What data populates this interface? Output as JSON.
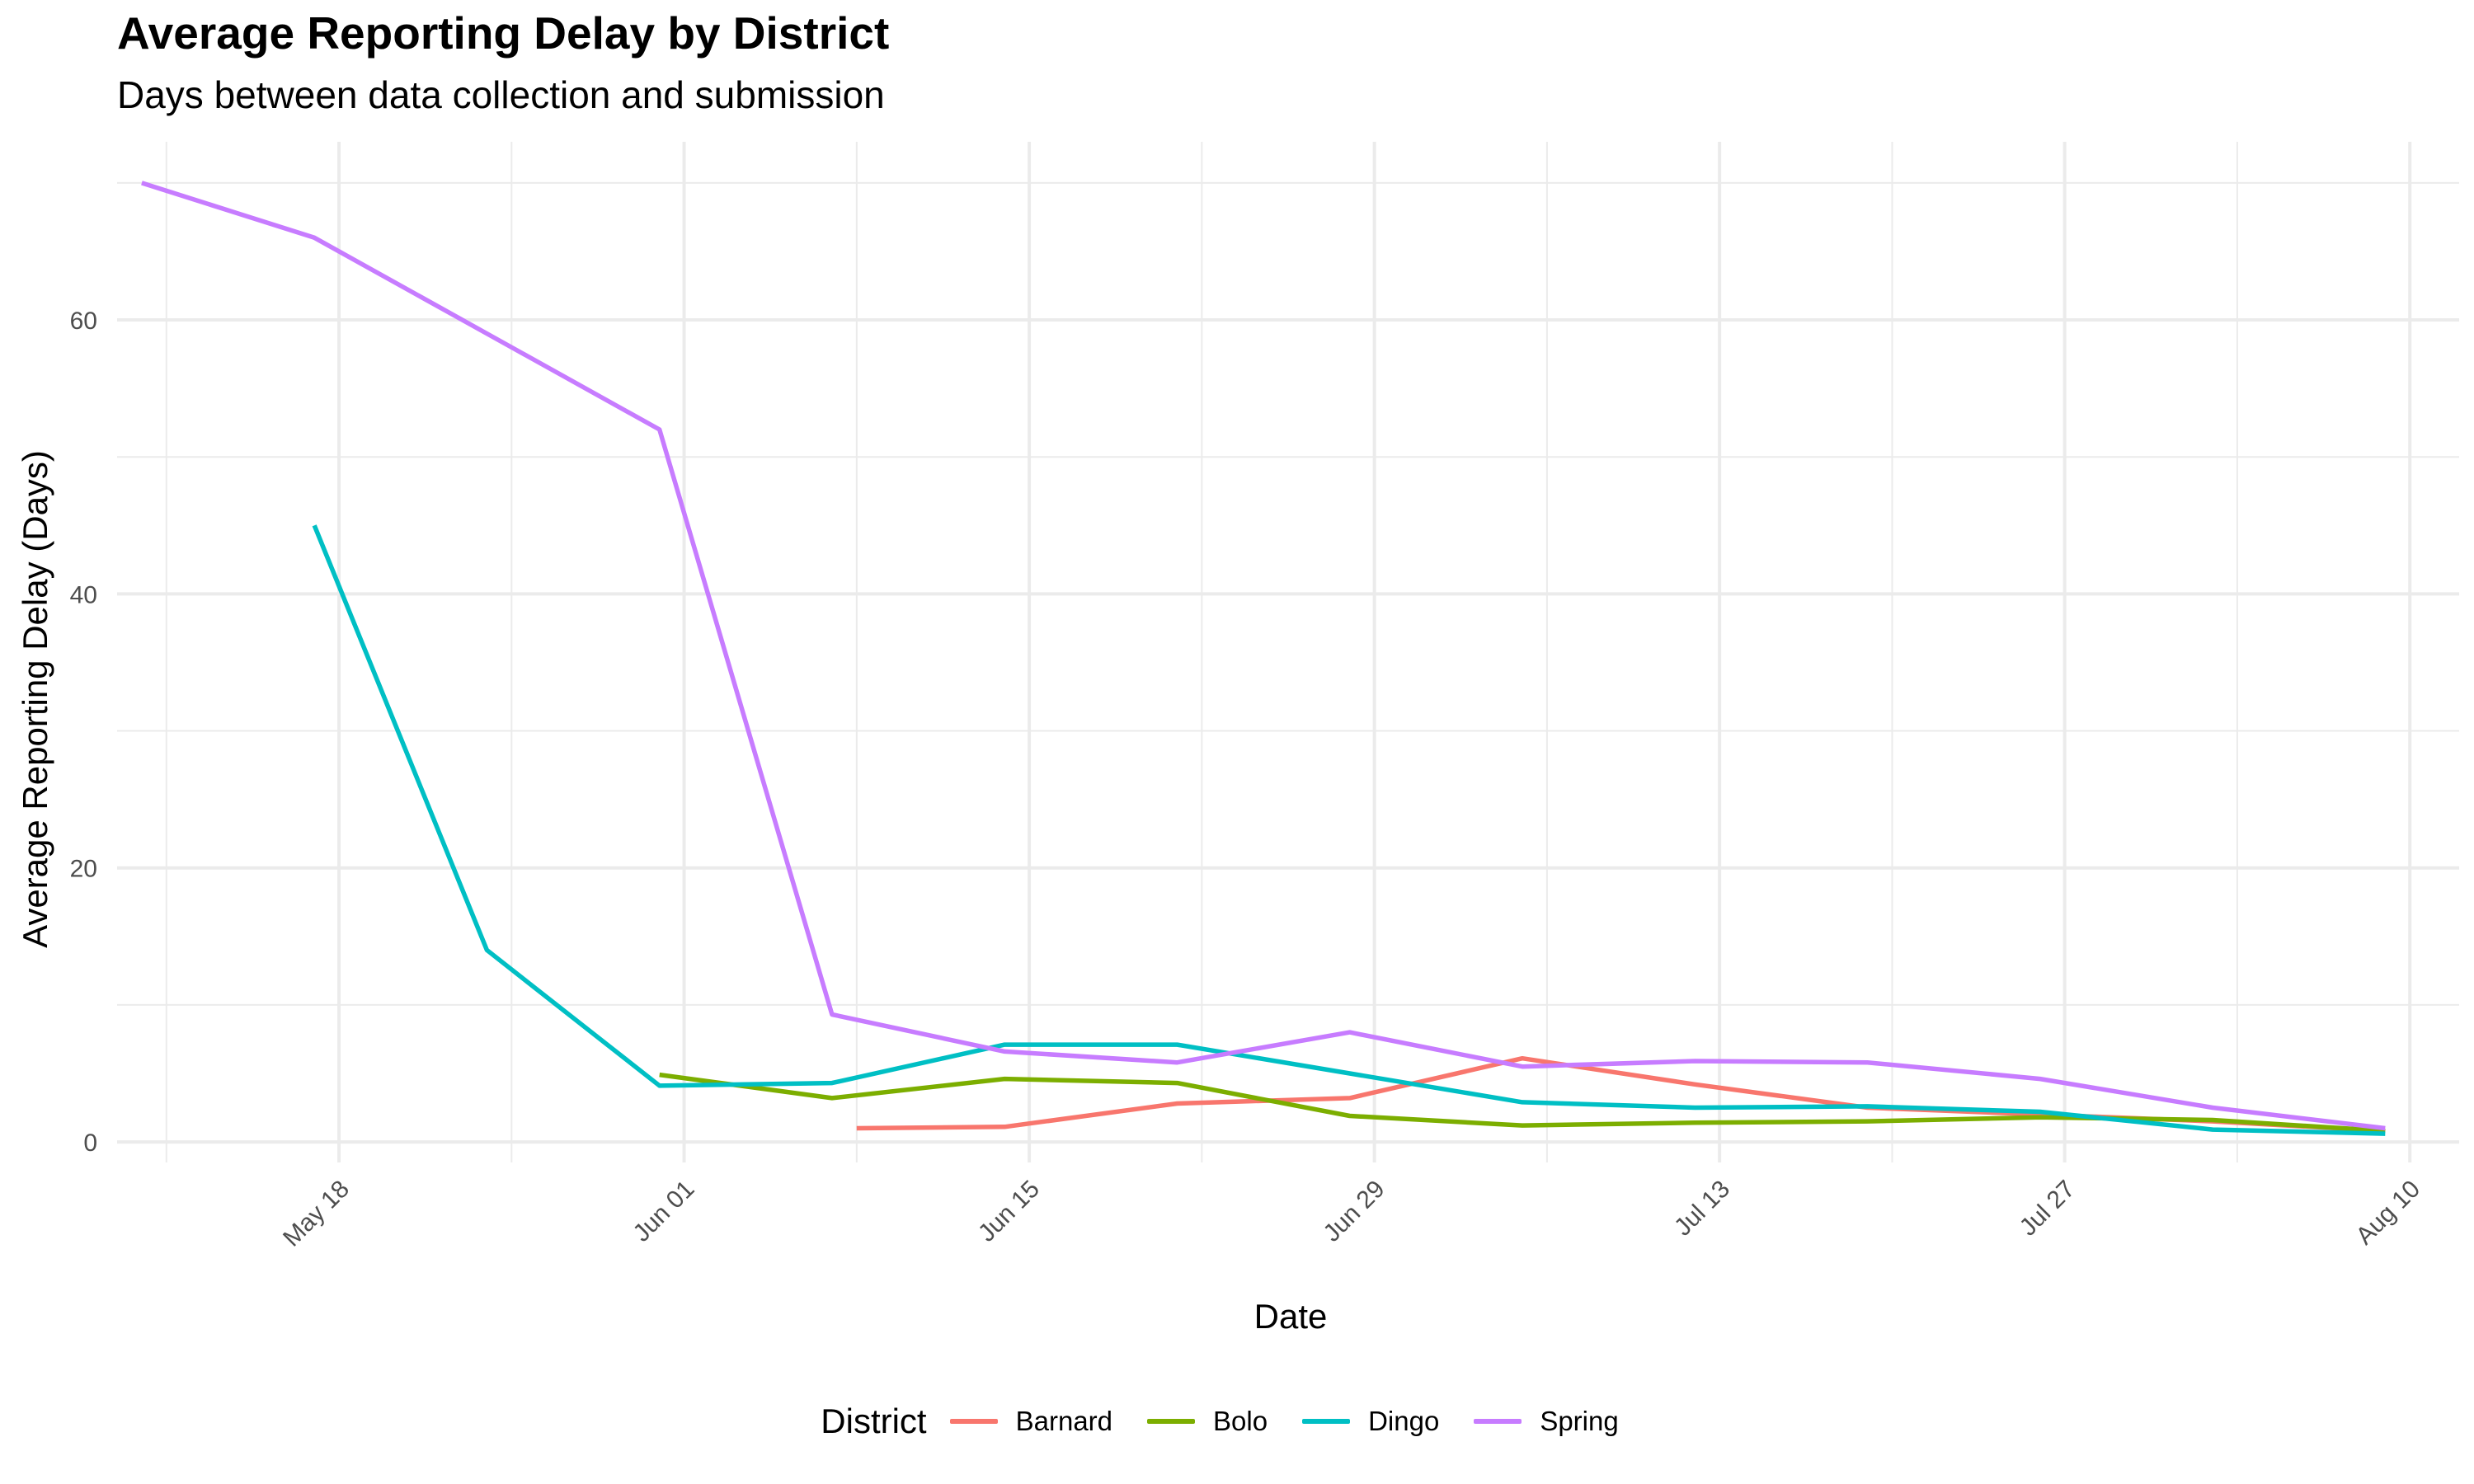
{
  "chart_data": {
    "type": "line",
    "title": "Average Reporting Delay by District",
    "subtitle": "Days between data collection and submission",
    "xlabel": "Date",
    "ylabel": "Average Reporting Delay (Days)",
    "x_ticks": [
      "May 18",
      "Jun 01",
      "Jun 15",
      "Jun 29",
      "Jul 13",
      "Jul 27",
      "Aug 10"
    ],
    "x_range": [
      "2025-05-09",
      "2025-08-12"
    ],
    "y_ticks": [
      "0",
      "20",
      "40",
      "60"
    ],
    "ylim": [
      -1.5,
      73
    ],
    "grid": true,
    "legend": {
      "title": "District",
      "position": "bottom"
    },
    "series": [
      {
        "name": "Barnard",
        "color": "#F8766D",
        "points": [
          [
            "2025-06-08",
            1.0
          ],
          [
            "2025-06-14",
            1.1
          ],
          [
            "2025-06-21",
            2.8
          ],
          [
            "2025-06-28",
            3.2
          ],
          [
            "2025-07-05",
            6.1
          ],
          [
            "2025-07-12",
            4.2
          ],
          [
            "2025-07-19",
            2.5
          ],
          [
            "2025-07-26",
            2.0
          ],
          [
            "2025-08-02",
            1.5
          ],
          [
            "2025-08-09",
            0.8
          ]
        ]
      },
      {
        "name": "Bolo",
        "color": "#7CAE00",
        "points": [
          [
            "2025-05-31",
            4.9
          ],
          [
            "2025-06-07",
            3.2
          ],
          [
            "2025-06-14",
            4.6
          ],
          [
            "2025-06-21",
            4.3
          ],
          [
            "2025-06-28",
            1.9
          ],
          [
            "2025-07-05",
            1.2
          ],
          [
            "2025-07-12",
            1.4
          ],
          [
            "2025-07-19",
            1.5
          ],
          [
            "2025-07-26",
            1.8
          ],
          [
            "2025-08-02",
            1.6
          ],
          [
            "2025-08-09",
            0.8
          ]
        ]
      },
      {
        "name": "Dingo",
        "color": "#00BFC4",
        "points": [
          [
            "2025-05-17",
            45.0
          ],
          [
            "2025-05-24",
            14.0
          ],
          [
            "2025-05-31",
            4.1
          ],
          [
            "2025-06-07",
            4.3
          ],
          [
            "2025-06-14",
            7.1
          ],
          [
            "2025-06-21",
            7.1
          ],
          [
            "2025-06-28",
            5.0
          ],
          [
            "2025-07-05",
            2.9
          ],
          [
            "2025-07-12",
            2.5
          ],
          [
            "2025-07-19",
            2.6
          ],
          [
            "2025-07-26",
            2.2
          ],
          [
            "2025-08-02",
            0.9
          ],
          [
            "2025-08-09",
            0.6
          ]
        ]
      },
      {
        "name": "Spring",
        "color": "#C77CFF",
        "points": [
          [
            "2025-05-10",
            70.0
          ],
          [
            "2025-05-17",
            66.0
          ],
          [
            "2025-05-24",
            59.0
          ],
          [
            "2025-05-31",
            52.0
          ],
          [
            "2025-06-07",
            9.3
          ],
          [
            "2025-06-14",
            6.6
          ],
          [
            "2025-06-21",
            5.8
          ],
          [
            "2025-06-28",
            8.0
          ],
          [
            "2025-07-05",
            5.5
          ],
          [
            "2025-07-12",
            5.9
          ],
          [
            "2025-07-19",
            5.8
          ],
          [
            "2025-07-26",
            4.6
          ],
          [
            "2025-08-02",
            2.5
          ],
          [
            "2025-08-09",
            1.0
          ]
        ]
      }
    ]
  }
}
